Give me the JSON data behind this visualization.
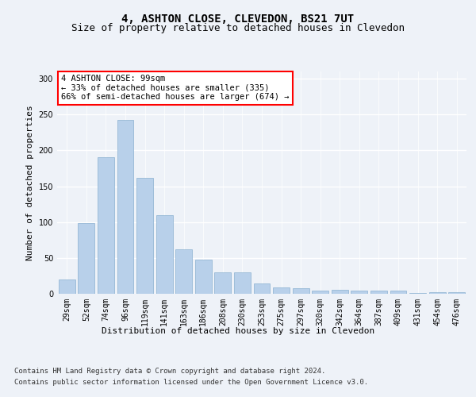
{
  "title": "4, ASHTON CLOSE, CLEVEDON, BS21 7UT",
  "subtitle": "Size of property relative to detached houses in Clevedon",
  "xlabel": "Distribution of detached houses by size in Clevedon",
  "ylabel": "Number of detached properties",
  "categories": [
    "29sqm",
    "52sqm",
    "74sqm",
    "96sqm",
    "119sqm",
    "141sqm",
    "163sqm",
    "186sqm",
    "208sqm",
    "230sqm",
    "253sqm",
    "275sqm",
    "297sqm",
    "320sqm",
    "342sqm",
    "364sqm",
    "387sqm",
    "409sqm",
    "431sqm",
    "454sqm",
    "476sqm"
  ],
  "values": [
    20,
    99,
    190,
    242,
    162,
    110,
    62,
    48,
    30,
    30,
    14,
    9,
    8,
    4,
    5,
    4,
    4,
    4,
    1,
    2,
    2
  ],
  "bar_color": "#b8d0ea",
  "bar_edgecolor": "#8ab0d0",
  "annotation_text": "4 ASHTON CLOSE: 99sqm\n← 33% of detached houses are smaller (335)\n66% of semi-detached houses are larger (674) →",
  "annotation_box_edgecolor": "red",
  "ylim": [
    0,
    310
  ],
  "yticks": [
    0,
    50,
    100,
    150,
    200,
    250,
    300
  ],
  "footer_line1": "Contains HM Land Registry data © Crown copyright and database right 2024.",
  "footer_line2": "Contains public sector information licensed under the Open Government Licence v3.0.",
  "bg_color": "#eef2f8",
  "plot_bg_color": "#eef2f8",
  "grid_color": "#ffffff",
  "title_fontsize": 10,
  "subtitle_fontsize": 9,
  "axis_label_fontsize": 8,
  "tick_fontsize": 7,
  "footer_fontsize": 6.5,
  "annotation_fontsize": 7.5
}
